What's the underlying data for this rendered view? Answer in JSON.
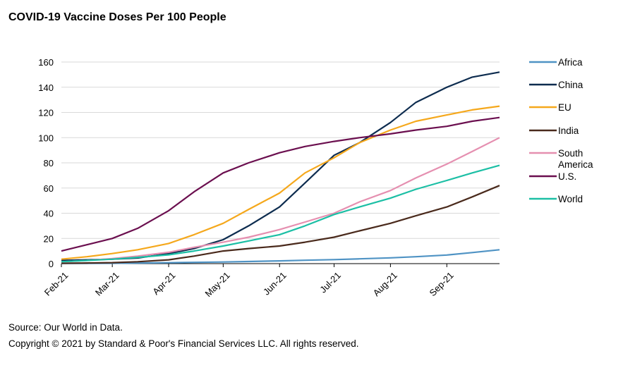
{
  "chart_data": {
    "type": "line",
    "title": "COVID-19 Vaccine Doses Per 100 People",
    "xlabel": "",
    "ylabel": "",
    "ylim": [
      0,
      160
    ],
    "yticks": [
      0,
      20,
      40,
      60,
      80,
      100,
      120,
      140,
      160
    ],
    "xticks": [
      "Feb-21",
      "Mar-21",
      "Apr-21",
      "May-21",
      "Jun-21",
      "Jul-21",
      "Aug-21",
      "Sep-21"
    ],
    "x": [
      "2021-02-01",
      "2021-02-15",
      "2021-03-01",
      "2021-03-15",
      "2021-04-01",
      "2021-04-15",
      "2021-05-01",
      "2021-05-15",
      "2021-06-01",
      "2021-06-15",
      "2021-07-01",
      "2021-07-15",
      "2021-08-01",
      "2021-08-15",
      "2021-09-01",
      "2021-09-15",
      "2021-09-30"
    ],
    "grid": "horizontal",
    "legend_position": "right",
    "series": [
      {
        "name": "Africa",
        "color": "#4f93c4",
        "values": [
          0.1,
          0.2,
          0.3,
          0.5,
          0.7,
          1.0,
          1.3,
          1.7,
          2.2,
          2.7,
          3.2,
          3.8,
          4.6,
          5.5,
          6.8,
          8.8,
          11
        ]
      },
      {
        "name": "China",
        "color": "#0d2c4f",
        "values": [
          2.5,
          3,
          3.5,
          4.5,
          8,
          12,
          19,
          30,
          45,
          64,
          86,
          96,
          112,
          128,
          140,
          148,
          152
        ]
      },
      {
        "name": "EU",
        "color": "#f5a81c",
        "values": [
          3.5,
          5.5,
          8,
          11,
          16,
          23,
          32,
          43,
          56,
          72,
          84,
          96,
          106,
          113,
          118,
          122,
          125
        ]
      },
      {
        "name": "India",
        "color": "#4a2a1c",
        "values": [
          0.3,
          0.5,
          0.8,
          1.5,
          3,
          6,
          10,
          12,
          14,
          17,
          21,
          26,
          32,
          38,
          45,
          53,
          62
        ]
      },
      {
        "name": "South America",
        "color": "#e58fb0",
        "values": [
          1.5,
          2.5,
          4,
          6,
          9,
          13,
          17,
          21,
          27,
          33,
          40,
          49,
          58,
          68,
          79,
          89,
          100
        ]
      },
      {
        "name": "U.S.",
        "color": "#6b0f4f",
        "values": [
          10,
          15,
          20,
          28,
          42,
          57,
          72,
          80,
          88,
          93,
          97,
          100,
          103,
          106,
          109,
          113,
          116
        ]
      },
      {
        "name": "World",
        "color": "#1cbfa5",
        "values": [
          1.5,
          2.5,
          3.5,
          5,
          7,
          10,
          14,
          18,
          23,
          30,
          39,
          45,
          52,
          59,
          66,
          72,
          78
        ]
      }
    ]
  },
  "footer": {
    "source": "Source: Our World in Data.",
    "copyright": "Copyright © 2021 by Standard & Poor's Financial Services LLC. All rights reserved."
  }
}
